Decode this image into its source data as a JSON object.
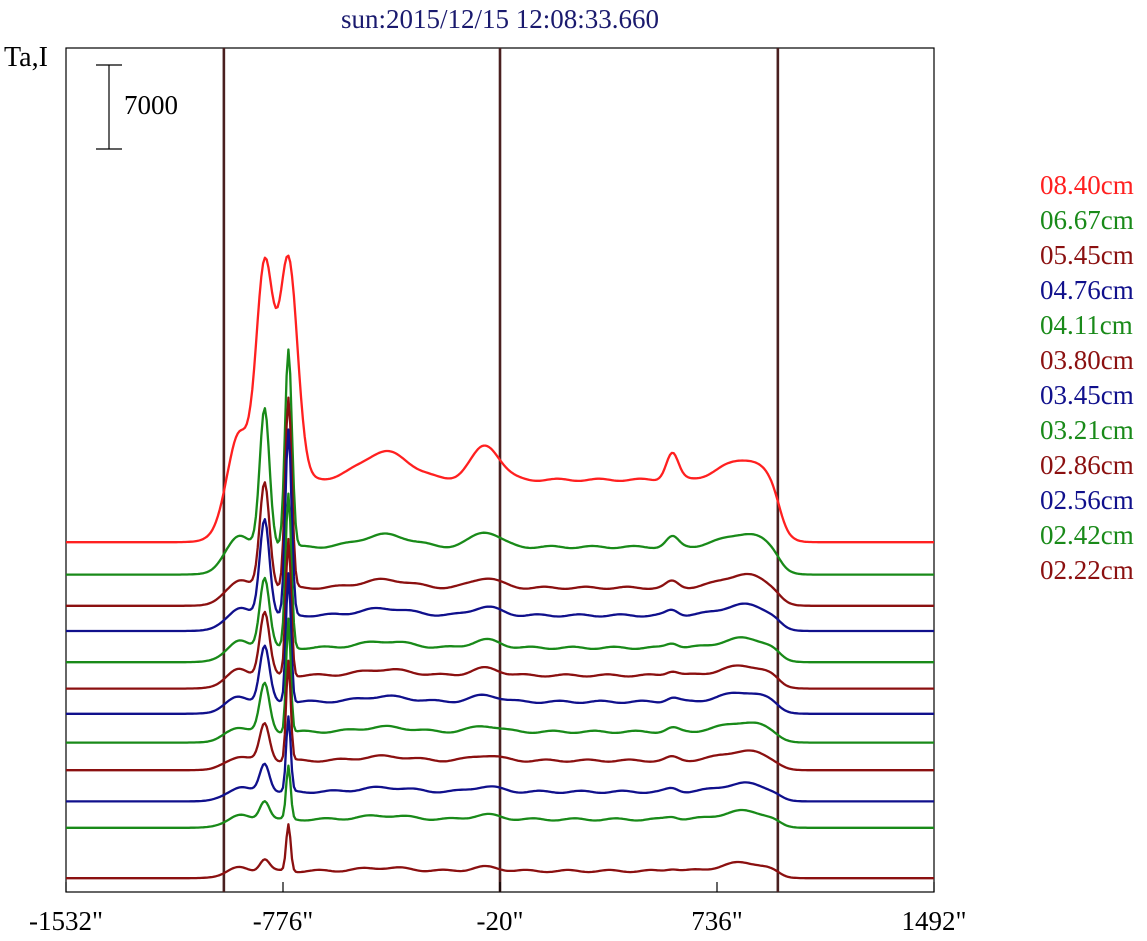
{
  "chart_data": {
    "type": "line",
    "title": "sun:2015/12/15 12:08:33.660",
    "ylabel": "Ta,I",
    "scale_bar_label": "7000",
    "scale_bar_value": 7000,
    "xlim": [
      -1532,
      1492
    ],
    "x_ticks": [
      -1532,
      -776,
      -20,
      736,
      1492
    ],
    "x_tick_labels": [
      "-1532\"",
      "-776\"",
      "-20\"",
      "736\"",
      "1492\""
    ],
    "vertical_lines_x": [
      -982,
      -20,
      948
    ],
    "grid": false,
    "legend_position": "right",
    "colors": {
      "red": "#ff2020",
      "green": "#198a19",
      "darkred": "#8b1010",
      "blue": "#10108c",
      "axis": "#000000",
      "vline": "#4a2020",
      "title": "#1a1a6e"
    },
    "series": [
      {
        "name": "08.40cm",
        "color": "#ff2020",
        "baseline_offset": 28000,
        "peak_1": 17800,
        "peak_2": 18400,
        "disk_level": 5200,
        "west_bump": 6400,
        "limb_level": 6900
      },
      {
        "name": "06.67cm",
        "color": "#198a19",
        "baseline_offset": 25300,
        "peak_1": 11500,
        "peak_2": 16500,
        "disk_level": 2300,
        "west_bump": 2400,
        "limb_level": 3400
      },
      {
        "name": "05.45cm",
        "color": "#8b1010",
        "baseline_offset": 22700,
        "peak_1": 8800,
        "peak_2": 15800,
        "disk_level": 1500,
        "west_bump": 1500,
        "limb_level": 2600
      },
      {
        "name": "04.76cm",
        "color": "#10108c",
        "baseline_offset": 20600,
        "peak_1": 8100,
        "peak_2": 15400,
        "disk_level": 1300,
        "west_bump": 1300,
        "limb_level": 2200
      },
      {
        "name": "04.11cm",
        "color": "#198a19",
        "baseline_offset": 18000,
        "peak_1": 5900,
        "peak_2": 12800,
        "disk_level": 1200,
        "west_bump": 1200,
        "limb_level": 2000
      },
      {
        "name": "03.80cm",
        "color": "#8b1010",
        "baseline_offset": 15800,
        "peak_1": 5300,
        "peak_2": 11400,
        "disk_level": 1100,
        "west_bump": 1100,
        "limb_level": 1900
      },
      {
        "name": "03.45cm",
        "color": "#10108c",
        "baseline_offset": 13700,
        "peak_1": 4600,
        "peak_2": 10800,
        "disk_level": 1000,
        "west_bump": 1000,
        "limb_level": 1800
      },
      {
        "name": "03.21cm",
        "color": "#198a19",
        "baseline_offset": 11300,
        "peak_1": 4000,
        "peak_2": 9500,
        "disk_level": 900,
        "west_bump": 900,
        "limb_level": 1700
      },
      {
        "name": "02.86cm",
        "color": "#8b1010",
        "baseline_offset": 9000,
        "peak_1": 3100,
        "peak_2": 8300,
        "disk_level": 800,
        "west_bump": 800,
        "limb_level": 1600
      },
      {
        "name": "02.56cm",
        "color": "#10108c",
        "baseline_offset": 6400,
        "peak_1": 2400,
        "peak_2": 6200,
        "disk_level": 800,
        "west_bump": 800,
        "limb_level": 1500
      },
      {
        "name": "02.42cm",
        "color": "#198a19",
        "baseline_offset": 4200,
        "peak_1": 1600,
        "peak_2": 4400,
        "disk_level": 700,
        "west_bump": 700,
        "limb_level": 1400
      },
      {
        "name": "02.22cm",
        "color": "#8b1010",
        "baseline_offset": 0,
        "peak_1": 1000,
        "peak_2": 3900,
        "disk_level": 600,
        "west_bump": 600,
        "limb_level": 1300
      }
    ]
  }
}
